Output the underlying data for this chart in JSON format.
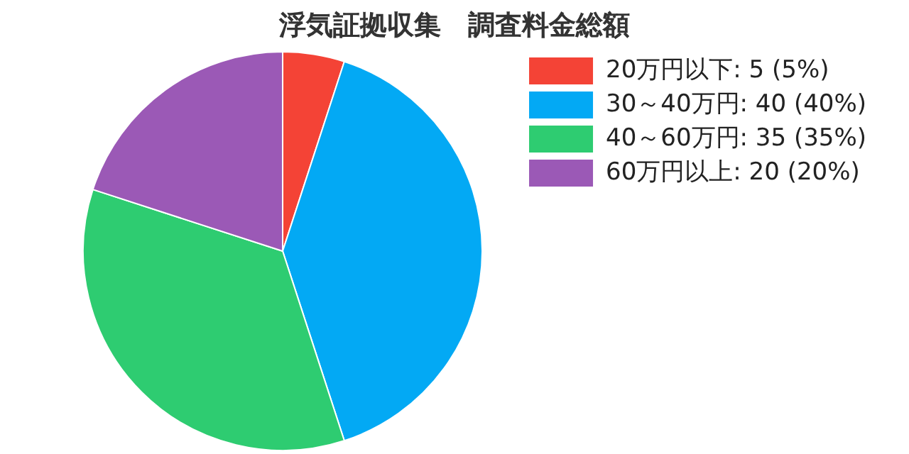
{
  "chart_data": {
    "type": "pie",
    "title": "浮気証拠収集　調査料金総額",
    "categories": [
      "20万円以下: 5 (5%)",
      "30～40万円: 40 (40%)",
      "40～60万円: 35 (35%)",
      "60万円以上: 20 (20%)"
    ],
    "values": [
      5,
      40,
      35,
      20
    ],
    "colors": [
      "#f44336",
      "#03a9f4",
      "#2ecc71",
      "#9b59b6"
    ],
    "legend": "right"
  }
}
